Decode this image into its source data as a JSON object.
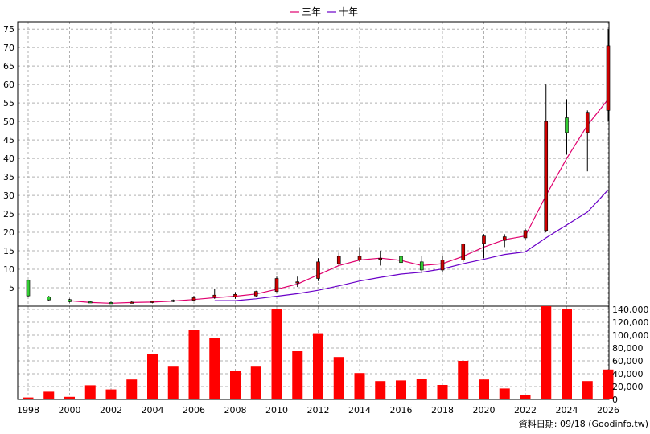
{
  "legend": [
    {
      "label": "三年",
      "color": "#e0006e"
    },
    {
      "label": "十年",
      "color": "#6a00c8"
    }
  ],
  "source_note": "資料日期: 09/18 (Goodinfo.tw)",
  "colors": {
    "up": "#cc0000",
    "down": "#33cc33",
    "volume": "#ff0000",
    "grid": "#b0b0b0",
    "wick": "#000000"
  },
  "chart_data": [
    {
      "type": "candlestick",
      "title": "",
      "xlabel": "",
      "ylabel": "",
      "ylim": [
        0,
        77
      ],
      "y_ticks": [
        5,
        10,
        15,
        20,
        25,
        30,
        35,
        40,
        45,
        50,
        55,
        60,
        65,
        70,
        75
      ],
      "x_ticks": [
        "1998",
        "2000",
        "2002",
        "2004",
        "2006",
        "2008",
        "2010",
        "2012",
        "2014",
        "2016",
        "2018",
        "2020",
        "2022",
        "2024",
        "2026"
      ],
      "grid": true,
      "legend_position": "top-center",
      "candles": [
        {
          "year": 1998,
          "open": 7,
          "high": 7,
          "low": 2.5,
          "close": 2.8
        },
        {
          "year": 1999,
          "open": 2.5,
          "high": 2.8,
          "low": 1.5,
          "close": 1.7
        },
        {
          "year": 2000,
          "open": 1.8,
          "high": 2,
          "low": 1,
          "close": 1.2
        },
        {
          "year": 2001,
          "open": 1.2,
          "high": 1.4,
          "low": 0.9,
          "close": 1
        },
        {
          "year": 2002,
          "open": 1,
          "high": 1.2,
          "low": 0.8,
          "close": 0.9
        },
        {
          "year": 2003,
          "open": 1,
          "high": 1.3,
          "low": 0.8,
          "close": 1.1
        },
        {
          "year": 2004,
          "open": 1.1,
          "high": 1.5,
          "low": 0.9,
          "close": 1.3
        },
        {
          "year": 2005,
          "open": 1.3,
          "high": 1.8,
          "low": 1.1,
          "close": 1.6
        },
        {
          "year": 2006,
          "open": 1.6,
          "high": 2.8,
          "low": 1.4,
          "close": 2.3
        },
        {
          "year": 2007,
          "open": 2.4,
          "high": 4.8,
          "low": 2,
          "close": 3
        },
        {
          "year": 2008,
          "open": 2.5,
          "high": 3.8,
          "low": 2,
          "close": 3.2
        },
        {
          "year": 2009,
          "open": 2.8,
          "high": 4.2,
          "low": 2.6,
          "close": 4
        },
        {
          "year": 2010,
          "open": 4,
          "high": 8,
          "low": 3.8,
          "close": 7.5
        },
        {
          "year": 2011,
          "open": 6.5,
          "high": 8,
          "low": 5.2,
          "close": 6.6
        },
        {
          "year": 2012,
          "open": 7.5,
          "high": 13,
          "low": 6.8,
          "close": 12
        },
        {
          "year": 2013,
          "open": 11.5,
          "high": 14.5,
          "low": 11,
          "close": 13.5
        },
        {
          "year": 2014,
          "open": 12.5,
          "high": 16,
          "low": 12,
          "close": 13.5
        },
        {
          "year": 2015,
          "open": 13,
          "high": 15,
          "low": 11,
          "close": 13
        },
        {
          "year": 2016,
          "open": 13.5,
          "high": 14.5,
          "low": 10.5,
          "close": 11.8
        },
        {
          "year": 2017,
          "open": 12,
          "high": 13.5,
          "low": 9,
          "close": 9.8
        },
        {
          "year": 2018,
          "open": 9.8,
          "high": 13.5,
          "low": 9.2,
          "close": 12.5
        },
        {
          "year": 2019,
          "open": 12.5,
          "high": 17,
          "low": 12,
          "close": 16.8
        },
        {
          "year": 2020,
          "open": 17,
          "high": 19.5,
          "low": 13,
          "close": 19
        },
        {
          "year": 2021,
          "open": 17.8,
          "high": 19.5,
          "low": 16,
          "close": 18.8
        },
        {
          "year": 2022,
          "open": 18.5,
          "high": 21,
          "low": 18,
          "close": 20.5
        },
        {
          "year": 2023,
          "open": 20.5,
          "high": 60,
          "low": 20,
          "close": 50
        },
        {
          "year": 2024,
          "open": 51,
          "high": 56,
          "low": 41,
          "close": 47
        },
        {
          "year": 2025,
          "open": 47,
          "high": 53,
          "low": 36.5,
          "close": 52.5
        },
        {
          "year": 2026,
          "open": 53,
          "high": 75,
          "low": 50,
          "close": 70.5
        }
      ],
      "series": [
        {
          "name": "三年",
          "x": [
            2000,
            2001,
            2002,
            2003,
            2004,
            2005,
            2006,
            2007,
            2008,
            2009,
            2010,
            2011,
            2012,
            2013,
            2014,
            2015,
            2016,
            2017,
            2018,
            2019,
            2020,
            2021,
            2022,
            2023,
            2024,
            2025,
            2026
          ],
          "values": [
            1.5,
            1,
            0.8,
            1,
            1.1,
            1.4,
            1.8,
            2.3,
            2.7,
            3.3,
            4.6,
            6,
            8.5,
            11,
            12.5,
            13,
            12.4,
            11,
            11.5,
            13.5,
            16,
            18,
            19,
            30,
            40,
            49,
            56
          ]
        },
        {
          "name": "十年",
          "x": [
            2007,
            2008,
            2009,
            2010,
            2011,
            2012,
            2013,
            2014,
            2015,
            2016,
            2017,
            2018,
            2019,
            2020,
            2021,
            2022,
            2023,
            2024,
            2025,
            2026
          ],
          "values": [
            1.5,
            1.5,
            2,
            2.7,
            3.4,
            4.3,
            5.5,
            6.8,
            7.8,
            8.7,
            9.2,
            10.1,
            11.5,
            12.7,
            14,
            14.7,
            18.5,
            22,
            25.5,
            31.5
          ]
        }
      ]
    },
    {
      "type": "bar",
      "title": "",
      "xlabel": "",
      "ylabel": "",
      "ylim": [
        0,
        145000
      ],
      "y_ticks": [
        0,
        20000,
        40000,
        60000,
        80000,
        100000,
        120000,
        140000
      ],
      "y_tick_labels": [
        "0",
        "20,000",
        "40,000",
        "60,000",
        "80,000",
        "100,000",
        "120,000",
        "140,000"
      ],
      "categories": [
        1998,
        1999,
        2000,
        2001,
        2002,
        2003,
        2004,
        2005,
        2006,
        2007,
        2008,
        2009,
        2010,
        2011,
        2012,
        2013,
        2014,
        2015,
        2016,
        2017,
        2018,
        2019,
        2020,
        2021,
        2022,
        2023,
        2024,
        2025,
        2026
      ],
      "values": [
        3000,
        12000,
        4000,
        22000,
        15500,
        31000,
        71000,
        51000,
        108000,
        95000,
        45000,
        51000,
        140000,
        75000,
        103000,
        66000,
        41000,
        28500,
        29500,
        32000,
        22500,
        60000,
        31000,
        17000,
        7000,
        146000,
        140000,
        28500,
        46500
      ]
    }
  ]
}
